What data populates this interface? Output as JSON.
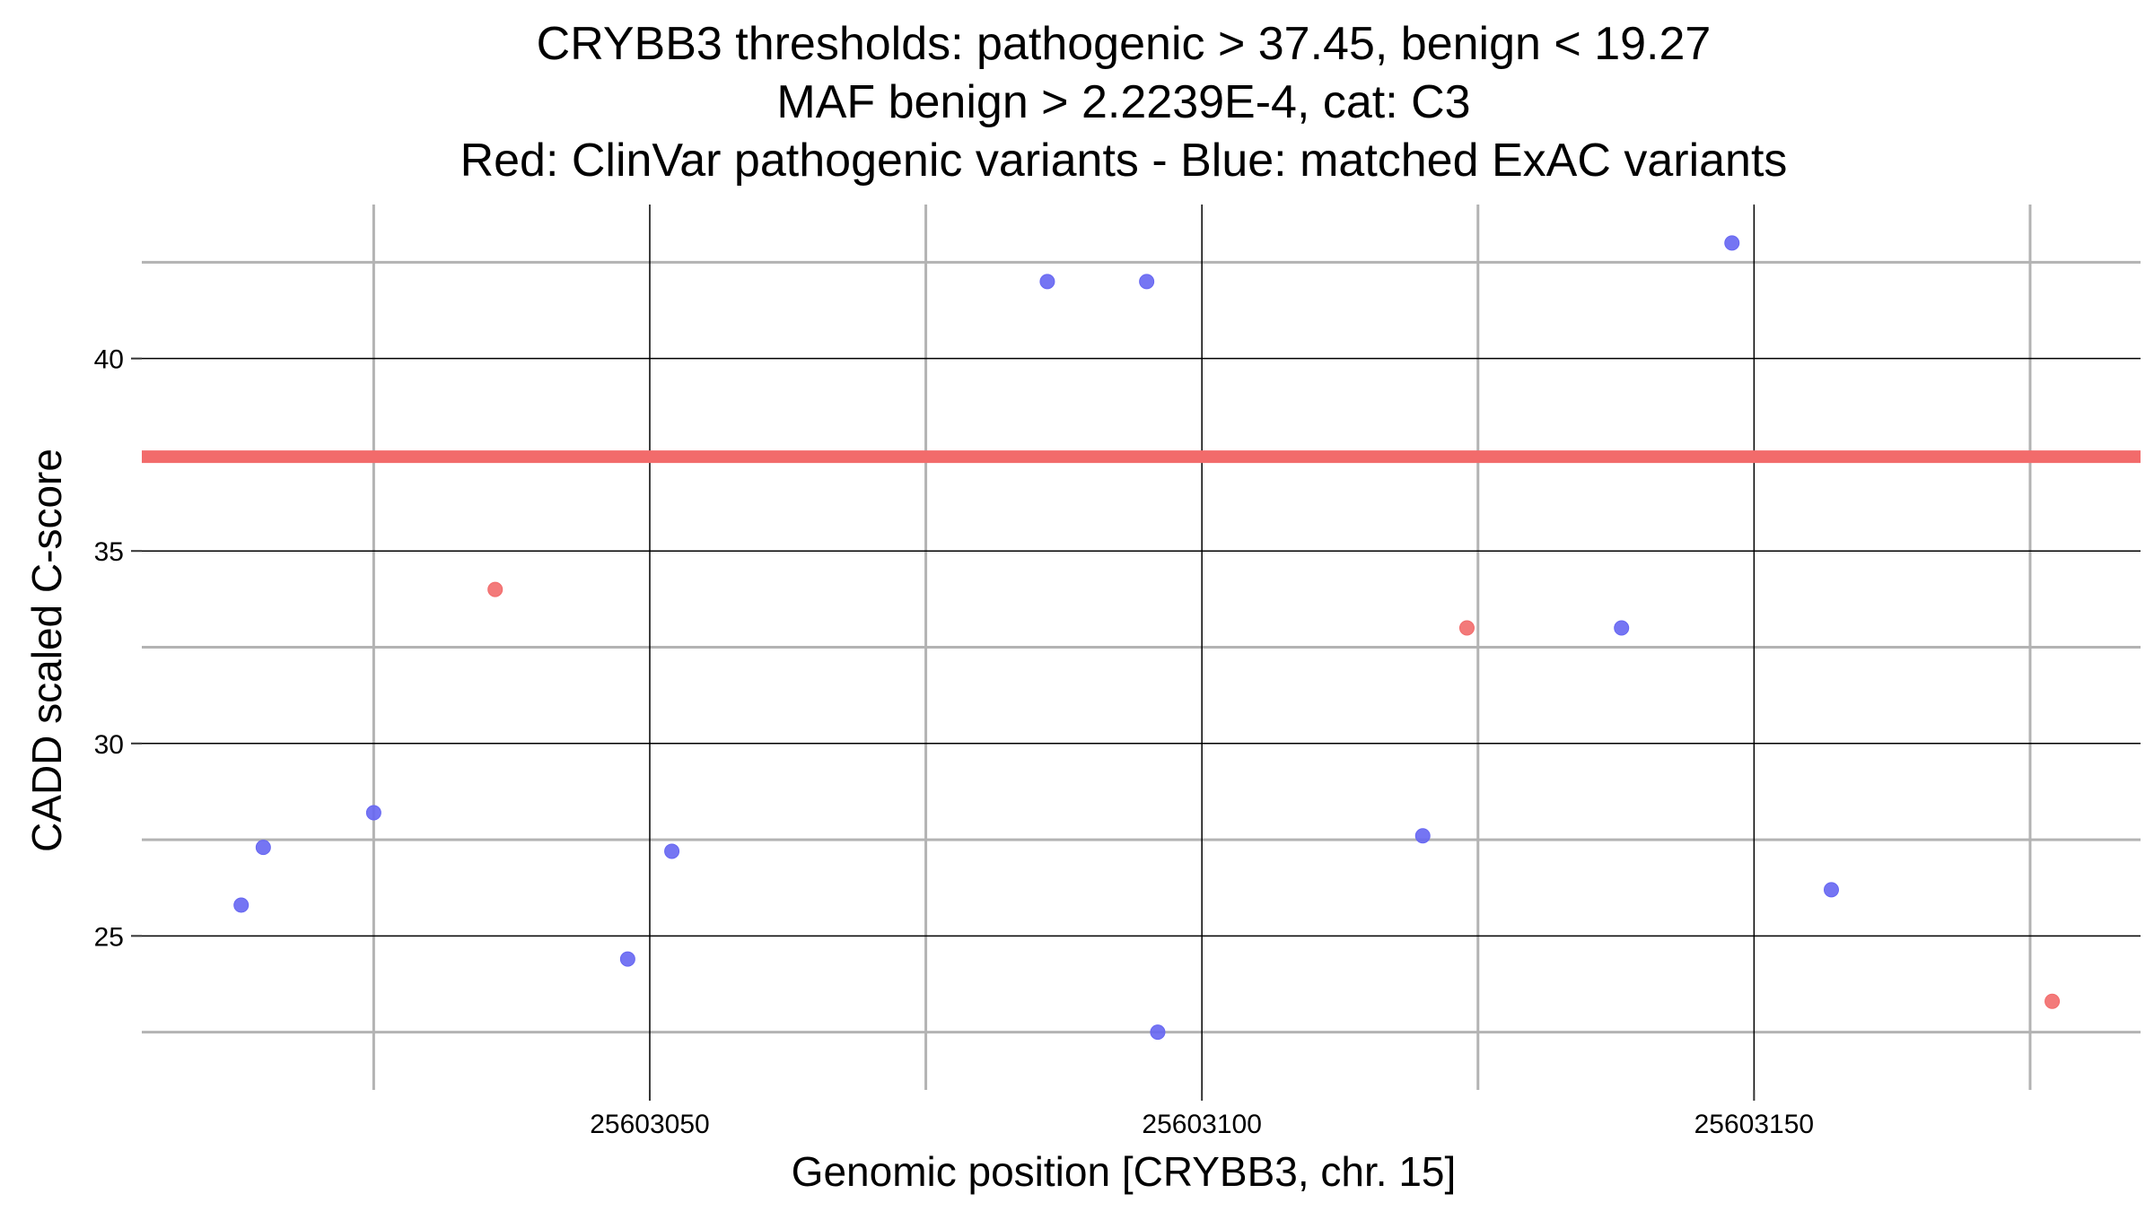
{
  "chart_data": {
    "type": "scatter",
    "title": [
      "CRYBB3 thresholds: pathogenic > 37.45, benign < 19.27",
      "MAF benign > 2.2239E-4, cat: C3",
      "Red: ClinVar pathogenic variants - Blue: matched ExAC variants"
    ],
    "xlabel": "Genomic position [CRYBB3, chr. 15]",
    "ylabel": "CADD scaled C-score",
    "xlim": [
      25603004,
      25603185
    ],
    "ylim": [
      21.0,
      44.0
    ],
    "x_major_ticks": [
      25603050,
      25603100,
      25603150
    ],
    "x_minor_ticks": [
      25603025,
      25603075,
      25603125,
      25603175
    ],
    "y_major_ticks": [
      25,
      30,
      35,
      40
    ],
    "y_minor_ticks": [
      22.5,
      27.5,
      32.5,
      37.5,
      42.5
    ],
    "threshold_line": {
      "y": 37.45,
      "color": "#f26b6b"
    },
    "grid": true,
    "series": [
      {
        "color": "#f26b6b",
        "points": [
          {
            "x": 25603036,
            "y": 34.0
          },
          {
            "x": 25603124,
            "y": 33.0
          },
          {
            "x": 25603177,
            "y": 23.3
          }
        ]
      },
      {
        "color": "#6666f2",
        "points": [
          {
            "x": 25603013,
            "y": 25.8
          },
          {
            "x": 25603015,
            "y": 27.3
          },
          {
            "x": 25603025,
            "y": 28.2
          },
          {
            "x": 25603048,
            "y": 24.4
          },
          {
            "x": 25603052,
            "y": 27.2
          },
          {
            "x": 25603086,
            "y": 42.0
          },
          {
            "x": 25603095,
            "y": 42.0
          },
          {
            "x": 25603096,
            "y": 22.5
          },
          {
            "x": 25603120,
            "y": 27.6
          },
          {
            "x": 25603138,
            "y": 33.0
          },
          {
            "x": 25603148,
            "y": 43.0
          },
          {
            "x": 25603157,
            "y": 26.2
          }
        ]
      }
    ]
  }
}
